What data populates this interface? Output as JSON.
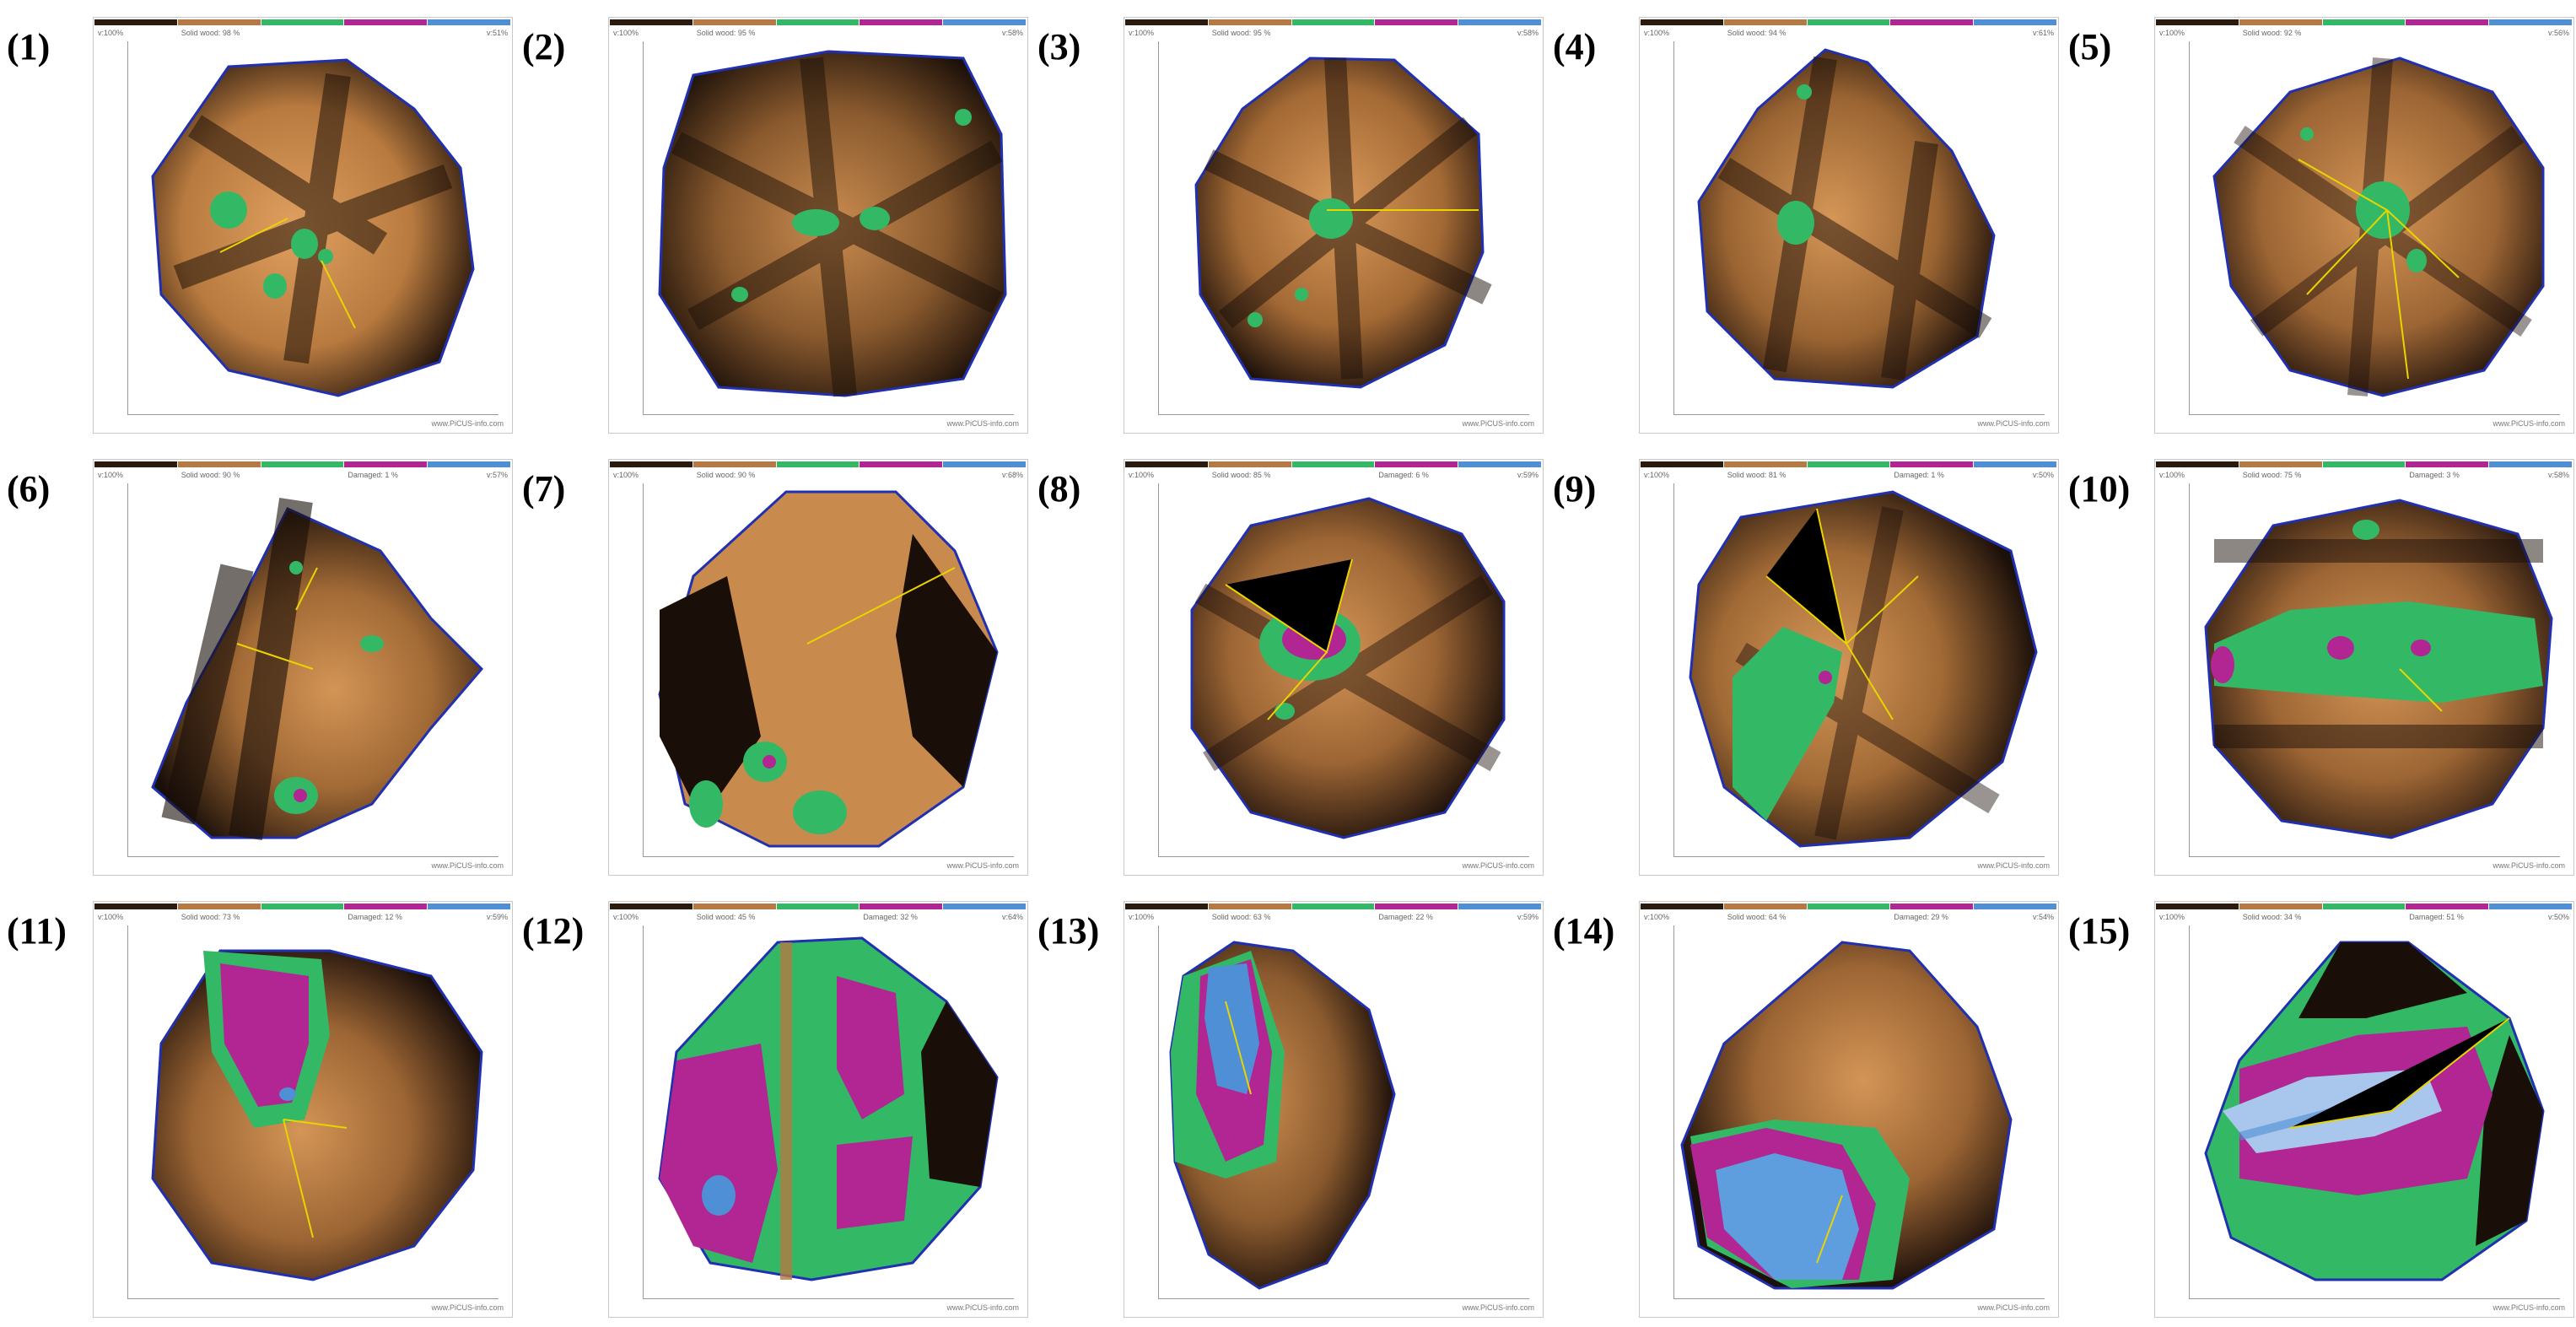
{
  "figure": {
    "colors": {
      "healthy_dark": "#1f120a",
      "healthy_light": "#d39456",
      "green": "#33b966",
      "magenta": "#b12692",
      "blue": "#4f8fd6",
      "outline": "#2030b0",
      "needle": "#e9d400"
    },
    "panels": [
      {
        "label": "(1)",
        "solid": "Solid wood: 98 %",
        "damaged": "",
        "v_left": "v:100%",
        "v_right": "v:51%",
        "credit": "www.PiCUS-info.com"
      },
      {
        "label": "(2)",
        "solid": "Solid wood: 95 %",
        "damaged": "",
        "v_left": "v:100%",
        "v_right": "v:58%",
        "credit": "www.PiCUS-info.com"
      },
      {
        "label": "(3)",
        "solid": "Solid wood: 95 %",
        "damaged": "",
        "v_left": "v:100%",
        "v_right": "v:58%",
        "credit": "www.PiCUS-info.com"
      },
      {
        "label": "(4)",
        "solid": "Solid wood: 94 %",
        "damaged": "",
        "v_left": "v:100%",
        "v_right": "v:61%",
        "credit": "www.PiCUS-info.com"
      },
      {
        "label": "(5)",
        "solid": "Solid wood: 92 %",
        "damaged": "",
        "v_left": "v:100%",
        "v_right": "v:56%",
        "credit": "www.PiCUS-info.com"
      },
      {
        "label": "(6)",
        "solid": "Solid wood: 90 %",
        "damaged": "Damaged: 1 %",
        "v_left": "v:100%",
        "v_right": "v:57%",
        "credit": "www.PiCUS-info.com"
      },
      {
        "label": "(7)",
        "solid": "Solid wood: 90 %",
        "damaged": "",
        "v_left": "v:100%",
        "v_right": "v:68%",
        "credit": "www.PiCUS-info.com"
      },
      {
        "label": "(8)",
        "solid": "Solid wood: 85 %",
        "damaged": "Damaged: 6 %",
        "v_left": "v:100%",
        "v_right": "v:59%",
        "credit": "www.PiCUS-info.com"
      },
      {
        "label": "(9)",
        "solid": "Solid wood: 81 %",
        "damaged": "Damaged: 1 %",
        "v_left": "v:100%",
        "v_right": "v:50%",
        "credit": "www.PiCUS-info.com"
      },
      {
        "label": "(10)",
        "solid": "Solid wood: 75 %",
        "damaged": "Damaged: 3 %",
        "v_left": "v:100%",
        "v_right": "v:58%",
        "credit": "www.PiCUS-info.com"
      },
      {
        "label": "(11)",
        "solid": "Solid wood: 73 %",
        "damaged": "Damaged: 12 %",
        "v_left": "v:100%",
        "v_right": "v:59%",
        "credit": "www.PiCUS-info.com"
      },
      {
        "label": "(12)",
        "solid": "Solid wood: 45 %",
        "damaged": "Damaged: 32 %",
        "v_left": "v:100%",
        "v_right": "v:64%",
        "credit": "www.PiCUS-info.com"
      },
      {
        "label": "(13)",
        "solid": "Solid wood: 63 %",
        "damaged": "Damaged: 22 %",
        "v_left": "v:100%",
        "v_right": "v:59%",
        "credit": "www.PiCUS-info.com"
      },
      {
        "label": "(14)",
        "solid": "Solid wood: 64 %",
        "damaged": "Damaged: 29 %",
        "v_left": "v:100%",
        "v_right": "v:54%",
        "credit": "www.PiCUS-info.com"
      },
      {
        "label": "(15)",
        "solid": "Solid wood: 34 %",
        "damaged": "Damaged: 51 %",
        "v_left": "v:100%",
        "v_right": "v:50%",
        "credit": "www.PiCUS-info.com"
      }
    ]
  }
}
